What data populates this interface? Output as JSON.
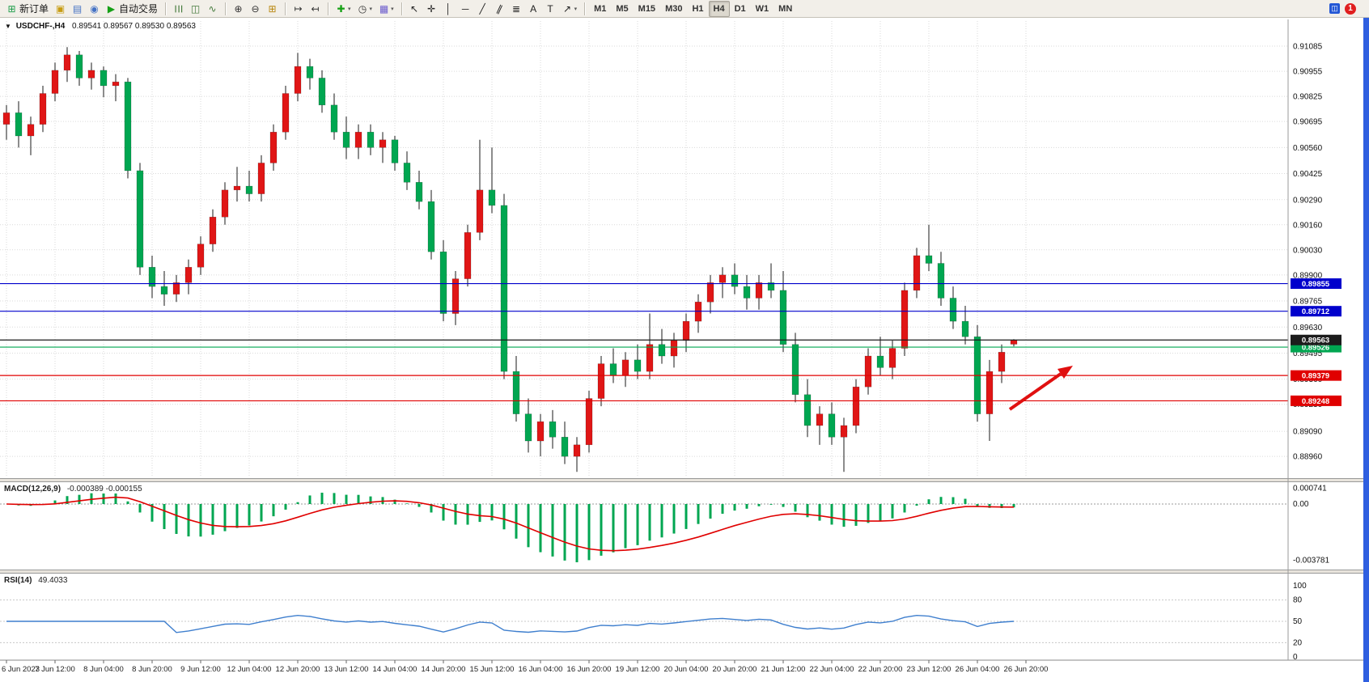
{
  "window": {
    "notification_count": "1"
  },
  "toolbar": {
    "groups": [
      {
        "name": "trade-group",
        "buttons": [
          {
            "name": "new-order-button",
            "icon": "new-order-icon",
            "glyph": "⊞",
            "color": "#1a9c48",
            "label": "新订单"
          },
          {
            "name": "charts-button",
            "icon": "chart-window-icon",
            "glyph": "▣",
            "color": "#c79c12"
          },
          {
            "name": "profiles-button",
            "icon": "profiles-icon",
            "glyph": "▤",
            "color": "#4472c4"
          },
          {
            "name": "data-window-button",
            "icon": "refresh-icon",
            "glyph": "◉",
            "color": "#4472c4"
          },
          {
            "name": "auto-trading-button",
            "icon": "auto-trading-play-icon",
            "glyph": "▶",
            "color": "#16a016",
            "label": "自动交易"
          }
        ]
      },
      {
        "name": "chart-type-group",
        "buttons": [
          {
            "name": "bar-chart-button",
            "icon": "bar-chart-icon",
            "glyph": "☰",
            "color": "#447a3c"
          },
          {
            "name": "candlestick-button",
            "icon": "candlestick-icon",
            "glyph": "◫",
            "color": "#447a3c"
          },
          {
            "name": "line-chart-button",
            "icon": "line-chart-icon",
            "glyph": "∿",
            "color": "#447a3c"
          }
        ]
      },
      {
        "name": "zoom-group",
        "buttons": [
          {
            "name": "zoom-in-button",
            "icon": "zoom-in-icon",
            "glyph": "⊕",
            "color": "#333333"
          },
          {
            "name": "zoom-out-button",
            "icon": "zoom-out-icon",
            "glyph": "⊖",
            "color": "#333333"
          },
          {
            "name": "tile-windows-button",
            "icon": "tile-windows-icon",
            "glyph": "⊞",
            "color": "#b8860b"
          }
        ]
      },
      {
        "name": "scroll-group",
        "buttons": [
          {
            "name": "auto-scroll-button",
            "icon": "auto-scroll-icon",
            "glyph": "↦",
            "color": "#333333"
          },
          {
            "name": "chart-shift-button",
            "icon": "chart-shift-icon",
            "glyph": "↤",
            "color": "#333333"
          }
        ]
      },
      {
        "name": "indicator-group",
        "buttons": [
          {
            "name": "indicators-button",
            "icon": "indicators-plus-icon",
            "glyph": "✚",
            "color": "#14a014",
            "caret": "▾"
          },
          {
            "name": "periods-button",
            "icon": "clock-icon",
            "glyph": "◷",
            "color": "#333333",
            "caret": "▾"
          },
          {
            "name": "templates-button",
            "icon": "template-icon",
            "glyph": "▦",
            "color": "#6a5acd",
            "caret": "▾"
          }
        ]
      },
      {
        "name": "tools-group",
        "buttons": [
          {
            "name": "cursor-button",
            "icon": "cursor-icon",
            "glyph": "↖",
            "color": "#222222"
          },
          {
            "name": "crosshair-button",
            "icon": "crosshair-icon",
            "glyph": "✛",
            "color": "#222222"
          },
          {
            "name": "vertical-line-button",
            "icon": "vertical-line-icon",
            "glyph": "│",
            "color": "#222222"
          },
          {
            "name": "horizontal-line-button",
            "icon": "horizontal-line-icon",
            "glyph": "─",
            "color": "#222222"
          },
          {
            "name": "trendline-button",
            "icon": "trendline-icon",
            "glyph": "╱",
            "color": "#222222"
          },
          {
            "name": "channel-button",
            "icon": "channel-icon",
            "glyph": "∥",
            "color": "#222222"
          },
          {
            "name": "fibonacci-button",
            "icon": "fibonacci-icon",
            "glyph": "≣",
            "color": "#222222"
          },
          {
            "name": "text-button",
            "icon": "text-a-icon",
            "glyph": "A",
            "color": "#222222"
          },
          {
            "name": "label-button",
            "icon": "label-t-icon",
            "glyph": "T",
            "color": "#222222"
          },
          {
            "name": "arrows-button",
            "icon": "arrow-ne-icon",
            "glyph": "↗",
            "color": "#222222",
            "caret": "▾"
          }
        ]
      }
    ],
    "timeframes": {
      "items": [
        "M1",
        "M5",
        "M15",
        "M30",
        "H1",
        "H4",
        "D1",
        "W1",
        "MN"
      ],
      "active": "H4"
    }
  },
  "chart_header": {
    "caret_glyph": "▼",
    "symbol": "USDCHF-,H4",
    "ohlc": "0.89541 0.89567 0.89530 0.89563"
  },
  "indicators": {
    "macd": {
      "label": "MACD(12,26,9)",
      "values": "-0.000389 -0.000155",
      "axis": [
        "0.000741",
        "0.00",
        "-0.003781"
      ]
    },
    "rsi": {
      "label": "RSI(14)",
      "value": "49.4033",
      "axis": [
        "100",
        "80",
        "50",
        "20",
        "0"
      ]
    }
  },
  "chart_data": {
    "type": "candlestick",
    "symbol": "USDCHF",
    "timeframe": "H4",
    "title": "USDCHF-,H4",
    "view": {
      "price_top": 0.9119,
      "price_bottom": 0.8886
    },
    "colors": {
      "up": "#e01616",
      "down": "#00a651",
      "macd_hist": "#00a651",
      "macd_signal": "#e00000",
      "rsi": "#3f7fce",
      "arrow": "#e01010"
    },
    "price_axis": [
      "0.91085",
      "0.90955",
      "0.90825",
      "0.90695",
      "0.90560",
      "0.90425",
      "0.90290",
      "0.90160",
      "0.90030",
      "0.89900",
      "0.89765",
      "0.89630",
      "0.89495",
      "0.89360",
      "0.89230",
      "0.89090",
      "0.88960"
    ],
    "levels": [
      {
        "price": 0.89855,
        "label": "0.89855",
        "color": "#0000cc",
        "type": "resistance"
      },
      {
        "price": 0.89712,
        "label": "0.89712",
        "color": "#0000cc",
        "type": "resistance"
      },
      {
        "price": 0.89526,
        "label": "0.89526",
        "color": "#00a651",
        "type": "support"
      },
      {
        "price": 0.89563,
        "label": "0.89563",
        "color": "#1c1c1c",
        "type": "current-price"
      },
      {
        "price": 0.89379,
        "label": "0.89379",
        "color": "#e00000",
        "type": "support"
      },
      {
        "price": 0.89248,
        "label": "0.89248",
        "color": "#e00000",
        "type": "support"
      }
    ],
    "time_labels": [
      "6 Jun 2023",
      "7 Jun 12:00",
      "8 Jun 04:00",
      "8 Jun 20:00",
      "9 Jun 12:00",
      "12 Jun 04:00",
      "12 Jun 20:00",
      "13 Jun 12:00",
      "14 Jun 04:00",
      "14 Jun 20:00",
      "15 Jun 12:00",
      "16 Jun 04:00",
      "16 Jun 20:00",
      "19 Jun 12:00",
      "20 Jun 04:00",
      "20 Jun 20:00",
      "21 Jun 12:00",
      "22 Jun 04:00",
      "22 Jun 20:00",
      "23 Jun 12:00",
      "26 Jun 04:00",
      "26 Jun 20:00"
    ],
    "candles": [
      [
        0.9068,
        0.9078,
        0.906,
        0.9074
      ],
      [
        0.9074,
        0.908,
        0.9056,
        0.9062
      ],
      [
        0.9062,
        0.9072,
        0.9052,
        0.9068
      ],
      [
        0.9068,
        0.9088,
        0.9064,
        0.9084
      ],
      [
        0.9084,
        0.91,
        0.908,
        0.9096
      ],
      [
        0.9096,
        0.9108,
        0.909,
        0.9104
      ],
      [
        0.9104,
        0.9106,
        0.9088,
        0.9092
      ],
      [
        0.9092,
        0.91,
        0.9086,
        0.9096
      ],
      [
        0.9096,
        0.9098,
        0.9082,
        0.9088
      ],
      [
        0.9088,
        0.9094,
        0.908,
        0.909
      ],
      [
        0.909,
        0.9092,
        0.904,
        0.9044
      ],
      [
        0.9044,
        0.9048,
        0.899,
        0.8994
      ],
      [
        0.8994,
        0.9,
        0.8978,
        0.8984
      ],
      [
        0.8984,
        0.8992,
        0.8974,
        0.898
      ],
      [
        0.898,
        0.899,
        0.8976,
        0.8986
      ],
      [
        0.8986,
        0.8998,
        0.898,
        0.8994
      ],
      [
        0.8994,
        0.901,
        0.899,
        0.9006
      ],
      [
        0.9006,
        0.9024,
        0.9002,
        0.902
      ],
      [
        0.902,
        0.9038,
        0.9016,
        0.9034
      ],
      [
        0.9034,
        0.9046,
        0.9028,
        0.9036
      ],
      [
        0.9036,
        0.9044,
        0.9028,
        0.9032
      ],
      [
        0.9032,
        0.9052,
        0.9028,
        0.9048
      ],
      [
        0.9048,
        0.9068,
        0.9044,
        0.9064
      ],
      [
        0.9064,
        0.9088,
        0.906,
        0.9084
      ],
      [
        0.9084,
        0.9105,
        0.908,
        0.9098
      ],
      [
        0.9098,
        0.9102,
        0.9086,
        0.9092
      ],
      [
        0.9092,
        0.9096,
        0.9074,
        0.9078
      ],
      [
        0.9078,
        0.9084,
        0.906,
        0.9064
      ],
      [
        0.9064,
        0.9072,
        0.905,
        0.9056
      ],
      [
        0.9056,
        0.9068,
        0.905,
        0.9064
      ],
      [
        0.9064,
        0.9068,
        0.9052,
        0.9056
      ],
      [
        0.9056,
        0.9064,
        0.9048,
        0.906
      ],
      [
        0.906,
        0.9062,
        0.9044,
        0.9048
      ],
      [
        0.9048,
        0.9054,
        0.9034,
        0.9038
      ],
      [
        0.9038,
        0.9044,
        0.9024,
        0.9028
      ],
      [
        0.9028,
        0.9034,
        0.8998,
        0.9002
      ],
      [
        0.9002,
        0.9008,
        0.8966,
        0.897
      ],
      [
        0.897,
        0.8992,
        0.8964,
        0.8988
      ],
      [
        0.8988,
        0.9016,
        0.8984,
        0.9012
      ],
      [
        0.9012,
        0.906,
        0.9008,
        0.9034
      ],
      [
        0.9034,
        0.9056,
        0.9022,
        0.9026
      ],
      [
        0.9026,
        0.9032,
        0.8936,
        0.894
      ],
      [
        0.894,
        0.8948,
        0.8914,
        0.8918
      ],
      [
        0.8918,
        0.8926,
        0.8898,
        0.8904
      ],
      [
        0.8904,
        0.8918,
        0.8896,
        0.8914
      ],
      [
        0.8914,
        0.892,
        0.89,
        0.8906
      ],
      [
        0.8906,
        0.8914,
        0.8892,
        0.8896
      ],
      [
        0.8896,
        0.8906,
        0.8888,
        0.8902
      ],
      [
        0.8902,
        0.893,
        0.8898,
        0.8926
      ],
      [
        0.8926,
        0.8948,
        0.8922,
        0.8944
      ],
      [
        0.8944,
        0.8952,
        0.8934,
        0.8938
      ],
      [
        0.8938,
        0.895,
        0.8932,
        0.8946
      ],
      [
        0.8946,
        0.8954,
        0.8936,
        0.894
      ],
      [
        0.894,
        0.897,
        0.8936,
        0.8954
      ],
      [
        0.8954,
        0.8962,
        0.8944,
        0.8948
      ],
      [
        0.8948,
        0.896,
        0.8942,
        0.8956
      ],
      [
        0.8956,
        0.897,
        0.895,
        0.8966
      ],
      [
        0.8966,
        0.898,
        0.896,
        0.8976
      ],
      [
        0.8976,
        0.899,
        0.897,
        0.8986
      ],
      [
        0.8986,
        0.8994,
        0.8978,
        0.899
      ],
      [
        0.899,
        0.8996,
        0.898,
        0.8984
      ],
      [
        0.8984,
        0.899,
        0.8972,
        0.8978
      ],
      [
        0.8978,
        0.899,
        0.8972,
        0.8986
      ],
      [
        0.8986,
        0.8996,
        0.8978,
        0.8982
      ],
      [
        0.8982,
        0.8992,
        0.895,
        0.8954
      ],
      [
        0.8954,
        0.896,
        0.8924,
        0.8928
      ],
      [
        0.8928,
        0.8936,
        0.8906,
        0.8912
      ],
      [
        0.8912,
        0.8922,
        0.8902,
        0.8918
      ],
      [
        0.8918,
        0.8924,
        0.8902,
        0.8906
      ],
      [
        0.8906,
        0.8916,
        0.8888,
        0.8912
      ],
      [
        0.8912,
        0.8936,
        0.8908,
        0.8932
      ],
      [
        0.8932,
        0.8952,
        0.8928,
        0.8948
      ],
      [
        0.8948,
        0.8958,
        0.8938,
        0.8942
      ],
      [
        0.8942,
        0.8956,
        0.8936,
        0.8952
      ],
      [
        0.8952,
        0.8986,
        0.8948,
        0.8982
      ],
      [
        0.8982,
        0.9004,
        0.8978,
        0.9
      ],
      [
        0.9,
        0.9016,
        0.8992,
        0.8996
      ],
      [
        0.8996,
        0.9002,
        0.8974,
        0.8978
      ],
      [
        0.8978,
        0.8984,
        0.8962,
        0.8966
      ],
      [
        0.8966,
        0.8974,
        0.8954,
        0.8958
      ],
      [
        0.8958,
        0.8964,
        0.8914,
        0.8918
      ],
      [
        0.8918,
        0.8946,
        0.8904,
        0.894
      ],
      [
        0.894,
        0.8954,
        0.8934,
        0.895
      ],
      [
        0.89541,
        0.89567,
        0.8953,
        0.89563
      ]
    ]
  }
}
